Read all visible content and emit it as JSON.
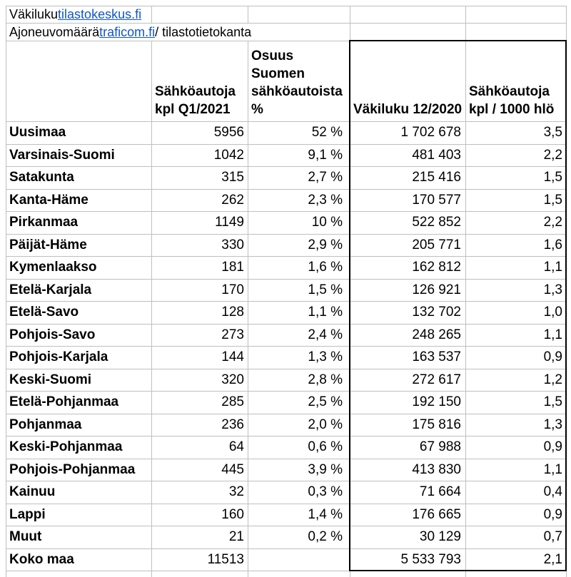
{
  "colors": {
    "link_blue": "#1155cc",
    "grid_gray": "#bfbfbf",
    "thick_border": "#000000",
    "text": "#000000",
    "background": "#ffffff"
  },
  "source_rows": {
    "row1": {
      "segments": [
        {
          "text": "Väkiluku ",
          "link": false
        },
        {
          "text": "tilastokeskus.fi",
          "link": true
        }
      ]
    },
    "row2": {
      "segments": [
        {
          "text": "Ajoneuvomäärä ",
          "link": false
        },
        {
          "text": "traficom.fi",
          "link": true
        },
        {
          "text": " / tilastotietokanta",
          "link": false
        }
      ]
    }
  },
  "table": {
    "headers": [
      {
        "key": "region",
        "label": ""
      },
      {
        "key": "ev-count",
        "label": "Sähköautoja\nkpl Q1/2021"
      },
      {
        "key": "share",
        "label": "Osuus\nSuomen\nsähköautoista\n%"
      },
      {
        "key": "population",
        "label": "Väkiluku 12/2020"
      },
      {
        "key": "per-1000",
        "label": "Sähköautoja\nkpl / 1000 hlö"
      }
    ],
    "rows": [
      {
        "name": "Uusimaa",
        "ev_count": "5956",
        "share": "52 %",
        "population": "1 702 678",
        "per_1000": "3,5"
      },
      {
        "name": "Varsinais-Suomi",
        "ev_count": "1042",
        "share": "9,1 %",
        "population": "481 403",
        "per_1000": "2,2"
      },
      {
        "name": "Satakunta",
        "ev_count": "315",
        "share": "2,7 %",
        "population": "215 416",
        "per_1000": "1,5"
      },
      {
        "name": "Kanta-Häme",
        "ev_count": "262",
        "share": "2,3 %",
        "population": "170 577",
        "per_1000": "1,5"
      },
      {
        "name": "Pirkanmaa",
        "ev_count": "1149",
        "share": "10 %",
        "population": "522 852",
        "per_1000": "2,2"
      },
      {
        "name": "Päijät-Häme",
        "ev_count": "330",
        "share": "2,9 %",
        "population": "205 771",
        "per_1000": "1,6"
      },
      {
        "name": "Kymenlaakso",
        "ev_count": "181",
        "share": "1,6 %",
        "population": "162 812",
        "per_1000": "1,1"
      },
      {
        "name": "Etelä-Karjala",
        "ev_count": "170",
        "share": "1,5 %",
        "population": "126 921",
        "per_1000": "1,3"
      },
      {
        "name": "Etelä-Savo",
        "ev_count": "128",
        "share": "1,1 %",
        "population": "132 702",
        "per_1000": "1,0"
      },
      {
        "name": "Pohjois-Savo",
        "ev_count": "273",
        "share": "2,4 %",
        "population": "248 265",
        "per_1000": "1,1"
      },
      {
        "name": "Pohjois-Karjala",
        "ev_count": "144",
        "share": "1,3 %",
        "population": "163 537",
        "per_1000": "0,9"
      },
      {
        "name": "Keski-Suomi",
        "ev_count": "320",
        "share": "2,8 %",
        "population": "272 617",
        "per_1000": "1,2"
      },
      {
        "name": "Etelä-Pohjanmaa",
        "ev_count": "285",
        "share": "2,5 %",
        "population": "192 150",
        "per_1000": "1,5"
      },
      {
        "name": "Pohjanmaa",
        "ev_count": "236",
        "share": "2,0 %",
        "population": "175 816",
        "per_1000": "1,3"
      },
      {
        "name": "Keski-Pohjanmaa",
        "ev_count": "64",
        "share": "0,6 %",
        "population": "67 988",
        "per_1000": "0,9"
      },
      {
        "name": "Pohjois-Pohjanmaa",
        "ev_count": "445",
        "share": "3,9 %",
        "population": "413 830",
        "per_1000": "1,1"
      },
      {
        "name": "Kainuu",
        "ev_count": "32",
        "share": "0,3 %",
        "population": "71 664",
        "per_1000": "0,4"
      },
      {
        "name": "Lappi",
        "ev_count": "160",
        "share": "1,4 %",
        "population": "176 665",
        "per_1000": "0,9"
      },
      {
        "name": "Muut",
        "ev_count": "21",
        "share": "0,2 %",
        "population": "30 129",
        "per_1000": "0,7"
      },
      {
        "name": "Koko maa",
        "ev_count": "11513",
        "share": "",
        "population": "5 533 793",
        "per_1000": "2,1"
      }
    ]
  }
}
